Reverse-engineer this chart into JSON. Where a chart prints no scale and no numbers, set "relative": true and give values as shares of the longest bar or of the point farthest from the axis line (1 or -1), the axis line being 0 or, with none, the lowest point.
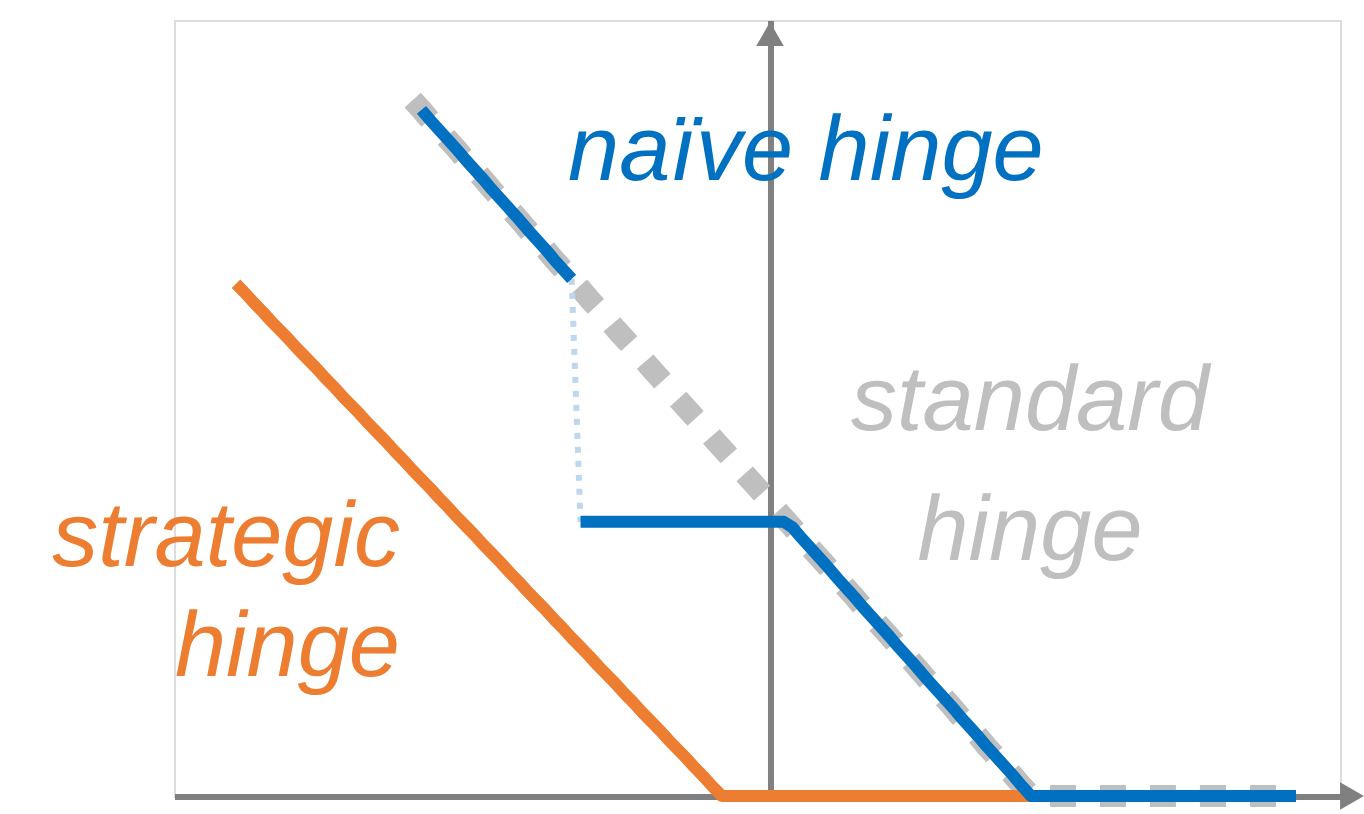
{
  "chart_data": {
    "type": "line",
    "relative": true,
    "categories": [
      null,
      null,
      null,
      null,
      null,
      null,
      null,
      null,
      null,
      null,
      null,
      null,
      null,
      null,
      null,
      null,
      null,
      null,
      null,
      null,
      null,
      null,
      null,
      null,
      null,
      null,
      null,
      null,
      null,
      null,
      null,
      null,
      null,
      null,
      null,
      null,
      null,
      null,
      null,
      null,
      null,
      null,
      null,
      null,
      null,
      null,
      null,
      null,
      null,
      null,
      null,
      null,
      null,
      null,
      null,
      null,
      null,
      null,
      null,
      null,
      null,
      null,
      null,
      null,
      null,
      null,
      null,
      null,
      null,
      null,
      null,
      null,
      null,
      null,
      null,
      null,
      null,
      null,
      null,
      null,
      null,
      null,
      null,
      null,
      null,
      null,
      null,
      null,
      null,
      null,
      null,
      null,
      null,
      null,
      null,
      null,
      null,
      null,
      null,
      null,
      null,
      null,
      null,
      null,
      null,
      null,
      null,
      null,
      null,
      null,
      null,
      null,
      null,
      null,
      null,
      null,
      null,
      null,
      null,
      null,
      null
    ],
    "series": [
      {
        "name": "standard hinge",
        "color": "#bfbfbf",
        "line_style": "dashed",
        "values": [
          null,
          null,
          null,
          null,
          null,
          null,
          null,
          null,
          null,
          null,
          null,
          null,
          null,
          null,
          null,
          null,
          null,
          null,
          null,
          null,
          1.0,
          0.986,
          0.971,
          0.957,
          0.943,
          0.929,
          0.914,
          0.9,
          0.886,
          0.871,
          0.857,
          0.843,
          0.829,
          0.814,
          0.8,
          0.786,
          0.771,
          0.757,
          0.743,
          0.729,
          0.714,
          0.7,
          0.686,
          0.671,
          0.657,
          0.643,
          0.629,
          0.614,
          0.6,
          0.586,
          0.571,
          0.557,
          0.543,
          0.529,
          0.514,
          0.5,
          0.486,
          0.471,
          0.457,
          0.443,
          0.429,
          0.414,
          0.4,
          0.386,
          0.371,
          0.357,
          0.343,
          0.329,
          0.314,
          0.3,
          0.286,
          0.271,
          0.257,
          0.243,
          0.229,
          0.214,
          0.2,
          0.186,
          0.171,
          0.157,
          0.143,
          0.129,
          0.114,
          0.1,
          0.086,
          0.071,
          0.057,
          0.043,
          0.029,
          0.014,
          0,
          0,
          0,
          0,
          0,
          0,
          0,
          0,
          0,
          0,
          0,
          0,
          0,
          0,
          0,
          0,
          0,
          0,
          0,
          0,
          0,
          0,
          0,
          0,
          0,
          0,
          0,
          0,
          0,
          0,
          0
        ]
      },
      {
        "name": "strategic hinge",
        "color": "#ed7d31",
        "values": [
          0.736,
          0.723,
          0.709,
          0.696,
          0.682,
          0.669,
          0.656,
          0.642,
          0.629,
          0.616,
          0.602,
          0.589,
          0.575,
          0.562,
          0.549,
          0.535,
          0.522,
          0.509,
          0.495,
          0.482,
          0.468,
          0.455,
          0.442,
          0.428,
          0.415,
          0.401,
          0.388,
          0.375,
          0.361,
          0.348,
          0.335,
          0.321,
          0.308,
          0.294,
          0.281,
          0.268,
          0.254,
          0.241,
          0.227,
          0.214,
          0.201,
          0.187,
          0.174,
          0.161,
          0.147,
          0.134,
          0.12,
          0.107,
          0.094,
          0.08,
          0.067,
          0.054,
          0.04,
          0.027,
          0.013,
          0,
          0,
          0,
          0,
          0,
          0,
          0,
          0,
          0,
          0,
          0,
          0,
          0,
          0,
          0,
          0,
          0,
          0,
          0,
          0,
          0,
          0,
          0,
          0,
          0,
          0,
          0,
          0,
          0,
          0,
          0,
          0,
          0,
          0,
          0,
          0,
          null,
          null,
          null,
          null,
          null,
          null,
          null,
          null,
          null,
          null,
          null,
          null,
          null,
          null,
          null,
          null,
          null,
          null,
          null,
          null,
          null,
          null,
          null,
          null,
          null,
          null,
          null,
          null,
          null,
          null
        ]
      },
      {
        "color": "#bdd7ee",
        "line_style": "dotted",
        "values": [
          null,
          null,
          null,
          null,
          null,
          null,
          null,
          null,
          null,
          null,
          null,
          null,
          null,
          null,
          null,
          null,
          null,
          null,
          null,
          null,
          null,
          null,
          null,
          null,
          null,
          null,
          null,
          null,
          null,
          null,
          null,
          null,
          null,
          null,
          null,
          null,
          null,
          null,
          0.743,
          0.394,
          null,
          null,
          null,
          null,
          null,
          null,
          null,
          null,
          null,
          null,
          null,
          null,
          null,
          null,
          null,
          null,
          null,
          null,
          null,
          null,
          null,
          null,
          null,
          null,
          null,
          null,
          null,
          null,
          null,
          null,
          null,
          null,
          null,
          null,
          null,
          null,
          null,
          null,
          null,
          null,
          null,
          null,
          null,
          null,
          null,
          null,
          null,
          null,
          null,
          null,
          null,
          null,
          null,
          null,
          null,
          null,
          null,
          null,
          null,
          null,
          null,
          null,
          null,
          null,
          null,
          null,
          null,
          null,
          null,
          null,
          null,
          null,
          null,
          null,
          null,
          null,
          null,
          null,
          null,
          null,
          null
        ]
      },
      {
        "name": "naïve hinge",
        "color": "#0070c0",
        "values": [
          null,
          null,
          null,
          null,
          null,
          null,
          null,
          null,
          null,
          null,
          null,
          null,
          null,
          null,
          null,
          null,
          null,
          null,
          null,
          null,
          null,
          0.986,
          0.971,
          0.957,
          0.943,
          0.929,
          0.914,
          0.9,
          0.886,
          0.871,
          0.857,
          0.843,
          0.829,
          0.814,
          0.8,
          0.786,
          0.771,
          0.757,
          0.743,
          null,
          null,
          null,
          null,
          null,
          null,
          null,
          null,
          null,
          null,
          null,
          null,
          null,
          null,
          null,
          null,
          null,
          null,
          null,
          null,
          null,
          null,
          null,
          null,
          null,
          null,
          null,
          null,
          null,
          null,
          null,
          null,
          null,
          null,
          null,
          null,
          null,
          null,
          null,
          null,
          null,
          null,
          null,
          null,
          null,
          null,
          null,
          null,
          null,
          null,
          null,
          null,
          null,
          null,
          null,
          null,
          null,
          null,
          null,
          null,
          null,
          null,
          null,
          null,
          null,
          null,
          null,
          null,
          null,
          null,
          null,
          null,
          null,
          null,
          null,
          null,
          null,
          null,
          null,
          null,
          null,
          null
        ]
      },
      {
        "color": "#0070c0",
        "values": [
          null,
          null,
          null,
          null,
          null,
          null,
          null,
          null,
          null,
          null,
          null,
          null,
          null,
          null,
          null,
          null,
          null,
          null,
          null,
          null,
          null,
          null,
          null,
          null,
          null,
          null,
          null,
          null,
          null,
          null,
          null,
          null,
          null,
          null,
          null,
          null,
          null,
          null,
          null,
          0.394,
          0.394,
          0.394,
          0.394,
          0.394,
          0.394,
          0.394,
          0.394,
          0.394,
          0.394,
          0.394,
          0.394,
          0.394,
          0.394,
          0.394,
          0.394,
          0.394,
          0.394,
          0.394,
          0.394,
          0.394,
          0.394,
          0.394,
          0.394,
          0.386,
          0.371,
          0.357,
          0.343,
          0.329,
          0.314,
          0.3,
          0.286,
          0.271,
          0.257,
          0.243,
          0.229,
          0.214,
          0.2,
          0.186,
          0.171,
          0.157,
          0.143,
          0.129,
          0.114,
          0.1,
          0.086,
          0.071,
          0.057,
          0.043,
          0.029,
          0.014,
          0,
          0,
          0,
          0,
          0,
          0,
          0,
          0,
          0,
          0,
          0,
          0,
          0,
          0,
          0,
          0,
          0,
          0,
          0,
          0,
          0,
          0,
          0,
          0,
          0,
          0,
          0,
          0,
          0,
          0,
          0
        ]
      }
    ]
  }
}
